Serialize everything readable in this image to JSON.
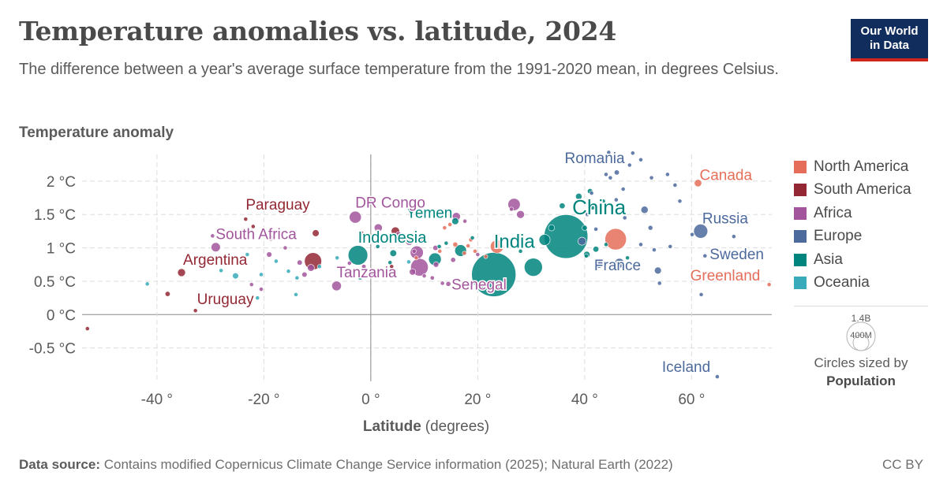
{
  "header": {
    "title": "Temperature anomalies vs. latitude, 2024",
    "subtitle": "The difference between a year's average surface temperature from the 1991-2020 mean, in degrees Celsius.",
    "logo_line1": "Our World",
    "logo_line2": "in Data"
  },
  "legend": {
    "items": [
      {
        "label": "North America",
        "color": "#e56e5a"
      },
      {
        "label": "South America",
        "color": "#932834"
      },
      {
        "label": "Africa",
        "color": "#a2559c"
      },
      {
        "label": "Europe",
        "color": "#4c6a9c"
      },
      {
        "label": "Asia",
        "color": "#00847e"
      },
      {
        "label": "Oceania",
        "color": "#38aaba"
      }
    ],
    "size_big": "1.4B",
    "size_small": "400M",
    "size_caption": "Circles sized by",
    "size_variable": "Population"
  },
  "footer": {
    "source_label": "Data source:",
    "source_text": "Contains modified Copernicus Climate Change Service information (2025); Natural Earth (2022)",
    "license": "CC BY"
  },
  "chart_data": {
    "type": "scatter",
    "ylabel": "Temperature anomaly",
    "xlabel_bold": "Latitude",
    "xlabel_rest": "(degrees)",
    "xlim": [
      -54,
      75
    ],
    "ylim": [
      -1,
      2.4
    ],
    "x_ticks": [
      -40,
      -20,
      0,
      20,
      40,
      60
    ],
    "x_tick_labels": [
      "-40 °",
      "-20 °",
      "0 °",
      "20 °",
      "40 °",
      "60 °"
    ],
    "y_ticks": [
      -0.5,
      0,
      0.5,
      1,
      1.5,
      2
    ],
    "y_tick_labels": [
      "-0.5 °C",
      "0 °C",
      "0.5 °C",
      "1 °C",
      "1.5 °C",
      "2 °C"
    ],
    "grid": true,
    "legend_position": "right",
    "points": [
      {
        "label": "China",
        "continent": "Asia",
        "x": 36.5,
        "y": 1.17,
        "pop": 1400
      },
      {
        "label": "India",
        "continent": "Asia",
        "x": 23,
        "y": 0.6,
        "pop": 1430
      },
      {
        "label": "Indonesia",
        "continent": "Asia",
        "x": -2.4,
        "y": 0.89,
        "pop": 280
      },
      {
        "label": "Yemen",
        "continent": "Asia",
        "x": 15.8,
        "y": 1.4,
        "pop": 35
      },
      {
        "label": "Russia",
        "continent": "Europe",
        "x": 61.7,
        "y": 1.25,
        "pop": 145
      },
      {
        "label": "Romania",
        "continent": "Europe",
        "x": 46,
        "y": 2.13,
        "pop": 19
      },
      {
        "label": "France",
        "continent": "Europe",
        "x": 46.5,
        "y": 0.77,
        "pop": 68
      },
      {
        "label": "Sweden",
        "continent": "Europe",
        "x": 62.5,
        "y": 0.88,
        "pop": 10
      },
      {
        "label": "Iceland",
        "continent": "Europe",
        "x": 64.8,
        "y": -0.93,
        "pop": 0.4
      },
      {
        "label": "Canada",
        "continent": "North America",
        "x": 61.2,
        "y": 1.97,
        "pop": 40
      },
      {
        "label": "Greenland",
        "continent": "North America",
        "x": 74.5,
        "y": 0.45,
        "pop": 0.06
      },
      {
        "label": "Paraguay",
        "continent": "South America",
        "x": -23.4,
        "y": 1.43,
        "pop": 7
      },
      {
        "label": "Argentina",
        "continent": "South America",
        "x": -35.4,
        "y": 0.63,
        "pop": 46
      },
      {
        "label": "Uruguay",
        "continent": "South America",
        "x": -32.8,
        "y": 0.06,
        "pop": 3.4
      },
      {
        "label": "DR Congo",
        "continent": "Africa",
        "x": -2.9,
        "y": 1.46,
        "pop": 105
      },
      {
        "label": "South Africa",
        "continent": "Africa",
        "x": -29,
        "y": 1.01,
        "pop": 62
      },
      {
        "label": "Tanzania",
        "continent": "Africa",
        "x": -6.4,
        "y": 0.43,
        "pop": 67
      },
      {
        "label": "Senegal",
        "continent": "Africa",
        "x": 14.5,
        "y": 0.46,
        "pop": 18
      },
      {
        "label": "",
        "continent": "South America",
        "x": -10.8,
        "y": 0.8,
        "pop": 215
      },
      {
        "label": "",
        "continent": "Africa",
        "x": 9.1,
        "y": 0.71,
        "pop": 225
      },
      {
        "label": "",
        "continent": "Africa",
        "x": 8.6,
        "y": 0.93,
        "pop": 125
      },
      {
        "label": "",
        "continent": "Asia",
        "x": 30.4,
        "y": 0.71,
        "pop": 240
      },
      {
        "label": "",
        "continent": "Asia",
        "x": 12,
        "y": 0.83,
        "pop": 115
      },
      {
        "label": "",
        "continent": "Asia",
        "x": 16.8,
        "y": 0.96,
        "pop": 100
      },
      {
        "label": "",
        "continent": "Asia",
        "x": 32.5,
        "y": 1.12,
        "pop": 90
      },
      {
        "label": "",
        "continent": "Asia",
        "x": 38.9,
        "y": 1.77,
        "pop": 30
      },
      {
        "label": "",
        "continent": "Asia",
        "x": 41,
        "y": 1.85,
        "pop": 20
      },
      {
        "label": "",
        "continent": "Asia",
        "x": 35.8,
        "y": 1.63,
        "pop": 25
      },
      {
        "label": "",
        "continent": "Asia",
        "x": 33.8,
        "y": 1.3,
        "pop": 28
      },
      {
        "label": "",
        "continent": "Asia",
        "x": 40,
        "y": 1.3,
        "pop": 20
      },
      {
        "label": "",
        "continent": "Asia",
        "x": 42.1,
        "y": 0.98,
        "pop": 25
      },
      {
        "label": "",
        "continent": "Asia",
        "x": 40.4,
        "y": 0.9,
        "pop": 30
      },
      {
        "label": "",
        "continent": "Asia",
        "x": 43.5,
        "y": 1.7,
        "pop": 8
      },
      {
        "label": "",
        "continent": "Asia",
        "x": 44,
        "y": 1.05,
        "pop": 10
      },
      {
        "label": "",
        "continent": "Asia",
        "x": 26,
        "y": 1.1,
        "pop": 6
      },
      {
        "label": "",
        "continent": "Asia",
        "x": 28,
        "y": 0.95,
        "pop": 5
      },
      {
        "label": "",
        "continent": "Asia",
        "x": 19,
        "y": 1.15,
        "pop": 8
      },
      {
        "label": "",
        "continent": "Asia",
        "x": 12.8,
        "y": 1.02,
        "pop": 6
      },
      {
        "label": "",
        "continent": "Asia",
        "x": 4.2,
        "y": 0.92,
        "pop": 33
      },
      {
        "label": "",
        "continent": "Asia",
        "x": 1.3,
        "y": 1.02,
        "pop": 6
      },
      {
        "label": "",
        "continent": "Asia",
        "x": 14.1,
        "y": 1.07,
        "pop": 6
      },
      {
        "label": "",
        "continent": "Asia",
        "x": 3.6,
        "y": 0.78,
        "pop": 5
      },
      {
        "label": "",
        "continent": "Asia",
        "x": 48,
        "y": 0.85,
        "pop": 4
      },
      {
        "label": "",
        "continent": "Asia",
        "x": 41.5,
        "y": 1.6,
        "pop": 4
      },
      {
        "label": "",
        "continent": "Asia",
        "x": 40.3,
        "y": 0.88,
        "pop": 3
      },
      {
        "label": "",
        "continent": "Asia",
        "x": -2,
        "y": 0.55,
        "pop": 3
      },
      {
        "label": "",
        "continent": "Europe",
        "x": 51.2,
        "y": 1.57,
        "pop": 38
      },
      {
        "label": "",
        "continent": "Europe",
        "x": 53.7,
        "y": 0.66,
        "pop": 35
      },
      {
        "label": "",
        "continent": "Europe",
        "x": 42.6,
        "y": 0.76,
        "pop": 55
      },
      {
        "label": "",
        "continent": "Europe",
        "x": 48.4,
        "y": 2.24,
        "pop": 9
      },
      {
        "label": "",
        "continent": "Europe",
        "x": 44.8,
        "y": 2.05,
        "pop": 7
      },
      {
        "label": "",
        "continent": "Europe",
        "x": 47.2,
        "y": 1.88,
        "pop": 9
      },
      {
        "label": "",
        "continent": "Europe",
        "x": 44,
        "y": 2.1,
        "pop": 6
      },
      {
        "label": "",
        "continent": "Europe",
        "x": 52.5,
        "y": 2.05,
        "pop": 9
      },
      {
        "label": "",
        "continent": "Europe",
        "x": 49,
        "y": 2.42,
        "pop": 10
      },
      {
        "label": "",
        "continent": "Europe",
        "x": 44.5,
        "y": 2.43,
        "pop": 3
      },
      {
        "label": "",
        "continent": "Europe",
        "x": 45.1,
        "y": 2.32,
        "pop": 4
      },
      {
        "label": "",
        "continent": "Europe",
        "x": 50.5,
        "y": 2.32,
        "pop": 4
      },
      {
        "label": "",
        "continent": "Europe",
        "x": 55.5,
        "y": 2.1,
        "pop": 3
      },
      {
        "label": "",
        "continent": "Europe",
        "x": 57.8,
        "y": 1.7,
        "pop": 2
      },
      {
        "label": "",
        "continent": "Europe",
        "x": 56.9,
        "y": 1.94,
        "pop": 2
      },
      {
        "label": "",
        "continent": "Europe",
        "x": 45.9,
        "y": 1.72,
        "pop": 4
      },
      {
        "label": "",
        "continent": "Europe",
        "x": 41.3,
        "y": 1.82,
        "pop": 3
      },
      {
        "label": "",
        "continent": "Europe",
        "x": 40.5,
        "y": 1.5,
        "pop": 11
      },
      {
        "label": "",
        "continent": "Europe",
        "x": 52.3,
        "y": 1.3,
        "pop": 17
      },
      {
        "label": "",
        "continent": "Europe",
        "x": 50.5,
        "y": 1.05,
        "pop": 11
      },
      {
        "label": "",
        "continent": "Europe",
        "x": 47.5,
        "y": 1.45,
        "pop": 9
      },
      {
        "label": "",
        "continent": "Europe",
        "x": 53,
        "y": 0.97,
        "pop": 5
      },
      {
        "label": "",
        "continent": "Europe",
        "x": 56,
        "y": 1.02,
        "pop": 6
      },
      {
        "label": "",
        "continent": "Europe",
        "x": 60.1,
        "y": 1.2,
        "pop": 5
      },
      {
        "label": "",
        "continent": "Europe",
        "x": 67.9,
        "y": 1.17,
        "pop": 5
      },
      {
        "label": "",
        "continent": "Europe",
        "x": 54,
        "y": 0.47,
        "pop": 5
      },
      {
        "label": "",
        "continent": "Europe",
        "x": 61.8,
        "y": 0.3,
        "pop": 0.06
      },
      {
        "label": "",
        "continent": "Europe",
        "x": 39.5,
        "y": 1.1,
        "pop": 47
      },
      {
        "label": "",
        "continent": "Europe",
        "x": 42.1,
        "y": 1.28,
        "pop": 3
      },
      {
        "label": "",
        "continent": "North America",
        "x": 45.8,
        "y": 1.13,
        "pop": 335
      },
      {
        "label": "",
        "continent": "North America",
        "x": 23.6,
        "y": 1.02,
        "pop": 128
      },
      {
        "label": "",
        "continent": "North America",
        "x": 18.7,
        "y": 1.12,
        "pop": 11
      },
      {
        "label": "",
        "continent": "North America",
        "x": 21.5,
        "y": 0.87,
        "pop": 11
      },
      {
        "label": "",
        "continent": "North America",
        "x": 19.5,
        "y": 0.95,
        "pop": 10
      },
      {
        "label": "",
        "continent": "North America",
        "x": 15.8,
        "y": 1.05,
        "pop": 18
      },
      {
        "label": "",
        "continent": "North America",
        "x": 14.8,
        "y": 1.35,
        "pop": 6
      },
      {
        "label": "",
        "continent": "North America",
        "x": 13.8,
        "y": 1.3,
        "pop": 6
      },
      {
        "label": "",
        "continent": "North America",
        "x": 12.9,
        "y": 0.95,
        "pop": 7
      },
      {
        "label": "",
        "continent": "North America",
        "x": 9.7,
        "y": 1.1,
        "pop": 5
      },
      {
        "label": "",
        "continent": "North America",
        "x": 8.5,
        "y": 0.85,
        "pop": 4
      },
      {
        "label": "",
        "continent": "North America",
        "x": 18.2,
        "y": 1.03,
        "pop": 3
      },
      {
        "label": "",
        "continent": "North America",
        "x": 17.5,
        "y": 0.92,
        "pop": 3
      },
      {
        "label": "",
        "continent": "South America",
        "x": -10.3,
        "y": 1.22,
        "pop": 34
      },
      {
        "label": "",
        "continent": "South America",
        "x": -1.8,
        "y": 1.22,
        "pop": 18
      },
      {
        "label": "",
        "continent": "South America",
        "x": 4.6,
        "y": 1.25,
        "pop": 52
      },
      {
        "label": "",
        "continent": "South America",
        "x": 6.4,
        "y": 1.12,
        "pop": 28
      },
      {
        "label": "",
        "continent": "South America",
        "x": -53,
        "y": -0.21,
        "pop": 0.003
      },
      {
        "label": "",
        "continent": "South America",
        "x": -38,
        "y": 0.31,
        "pop": 19
      },
      {
        "label": "",
        "continent": "South America",
        "x": 3.9,
        "y": 0.72,
        "pop": 0.6
      },
      {
        "label": "",
        "continent": "South America",
        "x": -22,
        "y": 1.32,
        "pop": 12
      },
      {
        "label": "",
        "continent": "Africa",
        "x": 26.8,
        "y": 1.65,
        "pop": 110
      },
      {
        "label": "",
        "continent": "Africa",
        "x": 16,
        "y": 1.47,
        "pop": 48
      },
      {
        "label": "",
        "continent": "Africa",
        "x": 26.3,
        "y": 1.58,
        "pop": 6
      },
      {
        "label": "",
        "continent": "Africa",
        "x": 28,
        "y": 1.5,
        "pop": 45
      },
      {
        "label": "",
        "continent": "Africa",
        "x": 7.5,
        "y": 1.5,
        "pop": 5
      },
      {
        "label": "",
        "continent": "Africa",
        "x": 1.4,
        "y": 1.3,
        "pop": 48
      },
      {
        "label": "",
        "continent": "Africa",
        "x": 5.2,
        "y": 1.2,
        "pop": 23
      },
      {
        "label": "",
        "continent": "Africa",
        "x": 7.2,
        "y": 1.1,
        "pop": 48
      },
      {
        "label": "",
        "continent": "Africa",
        "x": 12.1,
        "y": 1.0,
        "pop": 20
      },
      {
        "label": "",
        "continent": "Africa",
        "x": 15.4,
        "y": 0.82,
        "pop": 18
      },
      {
        "label": "",
        "continent": "Africa",
        "x": 12.2,
        "y": 0.75,
        "pop": 22
      },
      {
        "label": "",
        "continent": "Africa",
        "x": 8.1,
        "y": 0.95,
        "pop": 14
      },
      {
        "label": "",
        "continent": "Africa",
        "x": 7.8,
        "y": 0.64,
        "pop": 30
      },
      {
        "label": "",
        "continent": "Africa",
        "x": 11.5,
        "y": 0.55,
        "pop": 13
      },
      {
        "label": "",
        "continent": "Africa",
        "x": -13.3,
        "y": 0.78,
        "pop": 20
      },
      {
        "label": "",
        "continent": "Africa",
        "x": -19,
        "y": 0.9,
        "pop": 21
      },
      {
        "label": "",
        "continent": "Africa",
        "x": -11.2,
        "y": 0.7,
        "pop": 36
      },
      {
        "label": "",
        "continent": "Africa",
        "x": -22.3,
        "y": 0.45,
        "pop": 2.6
      },
      {
        "label": "",
        "continent": "Africa",
        "x": -20.5,
        "y": 0.38,
        "pop": 2.7
      },
      {
        "label": "",
        "continent": "Africa",
        "x": -18.7,
        "y": 1.15,
        "pop": 29
      },
      {
        "label": "",
        "continent": "Africa",
        "x": -16,
        "y": 1.0,
        "pop": 2
      },
      {
        "label": "",
        "continent": "Africa",
        "x": -12.4,
        "y": 0.6,
        "pop": 20
      },
      {
        "label": "",
        "continent": "Africa",
        "x": -4,
        "y": 0.77,
        "pop": 6
      },
      {
        "label": "",
        "continent": "Africa",
        "x": -1.3,
        "y": 0.72,
        "pop": 14
      },
      {
        "label": "",
        "continent": "Africa",
        "x": 0.2,
        "y": 0.6,
        "pop": 8
      },
      {
        "label": "",
        "continent": "Africa",
        "x": 10,
        "y": 0.58,
        "pop": 2
      },
      {
        "label": "",
        "continent": "Africa",
        "x": 13.4,
        "y": 0.47,
        "pop": 2.5
      },
      {
        "label": "",
        "continent": "Africa",
        "x": -29.6,
        "y": 1.18,
        "pop": 2
      },
      {
        "label": "",
        "continent": "Africa",
        "x": 17.6,
        "y": 1.4,
        "pop": 8
      },
      {
        "label": "",
        "continent": "Africa",
        "x": 20,
        "y": 0.9,
        "pop": 2
      },
      {
        "label": "",
        "continent": "Oceania",
        "x": -25.3,
        "y": 0.58,
        "pop": 27
      },
      {
        "label": "",
        "continent": "Oceania",
        "x": -41.8,
        "y": 0.46,
        "pop": 5
      },
      {
        "label": "",
        "continent": "Oceania",
        "x": -6.3,
        "y": 0.85,
        "pop": 10
      },
      {
        "label": "",
        "continent": "Oceania",
        "x": -17.7,
        "y": 0.8,
        "pop": 0.9
      },
      {
        "label": "",
        "continent": "Oceania",
        "x": -15.4,
        "y": 0.65,
        "pop": 0.3
      },
      {
        "label": "",
        "continent": "Oceania",
        "x": -13.8,
        "y": 0.55,
        "pop": 0.2
      },
      {
        "label": "",
        "continent": "Oceania",
        "x": -9.6,
        "y": 0.72,
        "pop": 0.7
      },
      {
        "label": "",
        "continent": "Oceania",
        "x": -21.2,
        "y": 0.25,
        "pop": 0.3
      },
      {
        "label": "",
        "continent": "Oceania",
        "x": -14,
        "y": 0.3,
        "pop": 0.2
      },
      {
        "label": "",
        "continent": "Oceania",
        "x": -28,
        "y": 0.66,
        "pop": 0.1
      },
      {
        "label": "",
        "continent": "Oceania",
        "x": -23.1,
        "y": 0.9,
        "pop": 0.3
      },
      {
        "label": "",
        "continent": "Oceania",
        "x": -20.5,
        "y": 0.6,
        "pop": 0.3
      },
      {
        "label": "",
        "continent": "Oceania",
        "x": 7.1,
        "y": 0.79,
        "pop": 0.1
      }
    ]
  }
}
